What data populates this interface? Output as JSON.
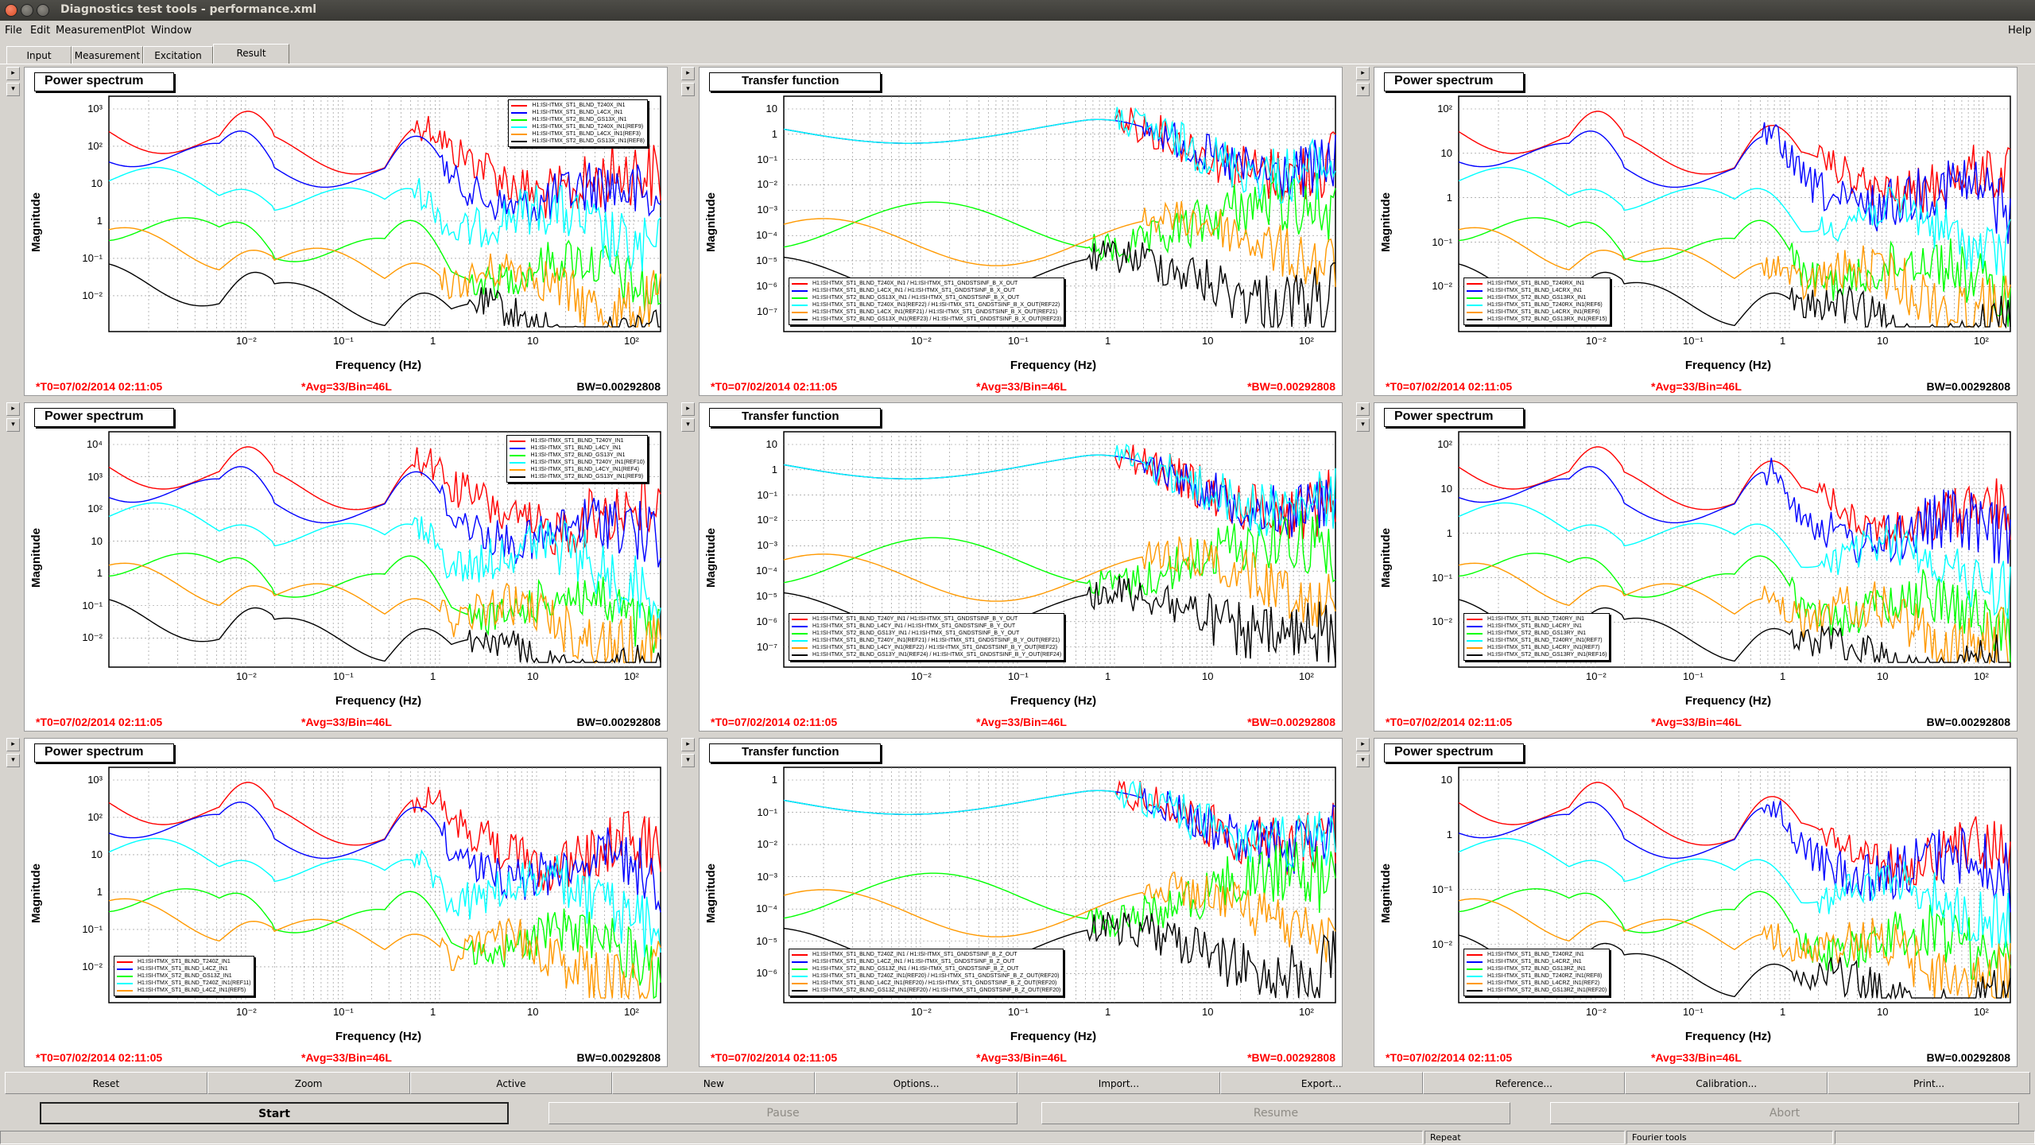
{
  "window": {
    "title": "Diagnostics test tools - performance.xml"
  },
  "menu": [
    {
      "label": "File"
    },
    {
      "label": "Edit"
    },
    {
      "label": "Measurement"
    },
    {
      "label": "Plot"
    },
    {
      "label": "Window"
    }
  ],
  "menu_help": "Help",
  "tabs": [
    {
      "label": "Input"
    },
    {
      "label": "Measurement"
    },
    {
      "label": "Excitation"
    },
    {
      "label": "Result",
      "selected": true
    }
  ],
  "colors": {
    "red": "#ff0000",
    "blue": "#0000ff",
    "green": "#00ff00",
    "orange": "#ff9900",
    "cyan": "#00ffff",
    "black": "#000000",
    "navy": "#000080"
  },
  "panels": [
    {
      "title": "Power spectrum",
      "kind": "ps",
      "yticks": [
        "10³",
        "10²",
        "10",
        "1",
        "10⁻¹",
        "10⁻²"
      ],
      "xticks": [
        "10⁻²",
        "10⁻¹",
        "1",
        "10",
        "10²"
      ],
      "ylabel": "Magnitude",
      "xlabel": "Frequency (Hz)",
      "t0": "*T0=07/02/2014 02:11:05",
      "avg": "*Avg=33/Bin=46L",
      "bw": "BW=0.00292808",
      "bw_red": false,
      "legend_pos": "top-right",
      "legend": [
        {
          "text": "H1:ISI-ITMX_ST1_BLND_T240X_IN1",
          "color": "red"
        },
        {
          "text": "H1:ISI-ITMX_ST1_BLND_L4CX_IN1",
          "color": "blue"
        },
        {
          "text": "H1:ISI-ITMX_ST2_BLND_GS13X_IN1",
          "color": "green"
        },
        {
          "text": "H1:ISI-ITMX_ST1_BLND_T240X_IN1(REF9)",
          "color": "cyan"
        },
        {
          "text": "H1:ISI-ITMX_ST1_BLND_L4CX_IN1(REF3)",
          "color": "orange"
        },
        {
          "text": "H1:ISI-ITMX_ST2_BLND_GS13X_IN1(REF8)",
          "color": "black"
        }
      ]
    },
    {
      "title": "Transfer function",
      "kind": "tf",
      "yticks": [
        "10",
        "1",
        "10⁻¹",
        "10⁻²",
        "10⁻³",
        "10⁻⁴",
        "10⁻⁵",
        "10⁻⁶",
        "10⁻⁷"
      ],
      "xticks": [
        "10⁻²",
        "10⁻¹",
        "1",
        "10",
        "10²"
      ],
      "ylabel": "Magnitude",
      "xlabel": "Frequency (Hz)",
      "t0": "*T0=07/02/2014 02:11:05",
      "avg": "*Avg=33/Bin=46L",
      "bw": "*BW=0.00292808",
      "bw_red": true,
      "legend_pos": "bottom-left",
      "legend": [
        {
          "text": "H1:ISI-ITMX_ST1_BLND_T240X_IN1 / H1:ISI-ITMX_ST1_GNDSTSINF_B_X_OUT",
          "color": "red"
        },
        {
          "text": "H1:ISI-ITMX_ST1_BLND_L4CX_IN1 / H1:ISI-ITMX_ST1_GNDSTSINF_B_X_OUT",
          "color": "blue"
        },
        {
          "text": "H1:ISI-ITMX_ST2_BLND_GS13X_IN1 / H1:ISI-ITMX_ST1_GNDSTSINF_B_X_OUT",
          "color": "green"
        },
        {
          "text": "H1:ISI-ITMX_ST1_BLND_T240X_IN1(REF22) / H1:ISI-ITMX_ST1_GNDSTSINF_B_X_OUT(REF22)",
          "color": "cyan"
        },
        {
          "text": "H1:ISI-ITMX_ST1_BLND_L4CX_IN1(REF21) / H1:ISI-ITMX_ST1_GNDSTSINF_B_X_OUT(REF21)",
          "color": "orange"
        },
        {
          "text": "H1:ISI-ITMX_ST2_BLND_GS13X_IN1(REF23) / H1:ISI-ITMX_ST1_GNDSTSINF_B_X_OUT(REF23)",
          "color": "black"
        }
      ]
    },
    {
      "title": "Power spectrum",
      "kind": "ps",
      "yticks": [
        "10²",
        "10",
        "1",
        "10⁻¹",
        "10⁻²"
      ],
      "xticks": [
        "10⁻²",
        "10⁻¹",
        "1",
        "10",
        "10²"
      ],
      "ylabel": "Magnitude",
      "xlabel": "Frequency (Hz)",
      "t0": "*T0=07/02/2014 02:11:05",
      "avg": "*Avg=33/Bin=46L",
      "bw": "BW=0.00292808",
      "bw_red": false,
      "legend_pos": "bottom-left",
      "legend": [
        {
          "text": "H1:ISI-ITMX_ST1_BLND_T240RX_IN1",
          "color": "red"
        },
        {
          "text": "H1:ISI-ITMX_ST1_BLND_L4CRX_IN1",
          "color": "blue"
        },
        {
          "text": "H1:ISI-ITMX_ST2_BLND_GS13RX_IN1",
          "color": "green"
        },
        {
          "text": "H1:ISI-ITMX_ST1_BLND_T240RX_IN1(REF6)",
          "color": "cyan"
        },
        {
          "text": "H1:ISI-ITMX_ST1_BLND_L4CRX_IN1(REF6)",
          "color": "orange"
        },
        {
          "text": "H1:ISI-ITMX_ST2_BLND_GS13RX_IN1(REF15)",
          "color": "black"
        }
      ]
    },
    {
      "title": "Power spectrum",
      "kind": "ps",
      "yticks": [
        "10⁴",
        "10³",
        "10²",
        "10",
        "1",
        "10⁻¹",
        "10⁻²"
      ],
      "xticks": [
        "10⁻²",
        "10⁻¹",
        "1",
        "10",
        "10²"
      ],
      "ylabel": "Magnitude",
      "xlabel": "Frequency (Hz)",
      "t0": "*T0=07/02/2014 02:11:05",
      "avg": "*Avg=33/Bin=46L",
      "bw": "BW=0.00292808",
      "bw_red": false,
      "legend_pos": "top-right",
      "legend": [
        {
          "text": "H1:ISI-ITMX_ST1_BLND_T240Y_IN1",
          "color": "red"
        },
        {
          "text": "H1:ISI-ITMX_ST1_BLND_L4CY_IN1",
          "color": "blue"
        },
        {
          "text": "H1:ISI-ITMX_ST2_BLND_GS13Y_IN1",
          "color": "green"
        },
        {
          "text": "H1:ISI-ITMX_ST1_BLND_T240Y_IN1(REF10)",
          "color": "cyan"
        },
        {
          "text": "H1:ISI-ITMX_ST1_BLND_L4CY_IN1(REF4)",
          "color": "orange"
        },
        {
          "text": "H1:ISI-ITMX_ST2_BLND_GS13Y_IN1(REF9)",
          "color": "black"
        }
      ]
    },
    {
      "title": "Transfer function",
      "kind": "tf",
      "yticks": [
        "10",
        "1",
        "10⁻¹",
        "10⁻²",
        "10⁻³",
        "10⁻⁴",
        "10⁻⁵",
        "10⁻⁶",
        "10⁻⁷"
      ],
      "xticks": [
        "10⁻²",
        "10⁻¹",
        "1",
        "10",
        "10²"
      ],
      "ylabel": "Magnitude",
      "xlabel": "Frequency (Hz)",
      "t0": "*T0=07/02/2014 02:11:05",
      "avg": "*Avg=33/Bin=46L",
      "bw": "*BW=0.00292808",
      "bw_red": true,
      "legend_pos": "bottom-left",
      "legend": [
        {
          "text": "H1:ISI-ITMX_ST1_BLND_T240Y_IN1 / H1:ISI-ITMX_ST1_GNDSTSINF_B_Y_OUT",
          "color": "red"
        },
        {
          "text": "H1:ISI-ITMX_ST1_BLND_L4CY_IN1 / H1:ISI-ITMX_ST1_GNDSTSINF_B_Y_OUT",
          "color": "blue"
        },
        {
          "text": "H1:ISI-ITMX_ST2_BLND_GS13Y_IN1 / H1:ISI-ITMX_ST1_GNDSTSINF_B_Y_OUT",
          "color": "green"
        },
        {
          "text": "H1:ISI-ITMX_ST1_BLND_T240Y_IN1(REF21) / H1:ISI-ITMX_ST1_GNDSTSINF_B_Y_OUT(REF21)",
          "color": "cyan"
        },
        {
          "text": "H1:ISI-ITMX_ST1_BLND_L4CY_IN1(REF22) / H1:ISI-ITMX_ST1_GNDSTSINF_B_Y_OUT(REF22)",
          "color": "orange"
        },
        {
          "text": "H1:ISI-ITMX_ST2_BLND_GS13Y_IN1(REF24) / H1:ISI-ITMX_ST1_GNDSTSINF_B_Y_OUT(REF24)",
          "color": "black"
        }
      ]
    },
    {
      "title": "Power spectrum",
      "kind": "ps",
      "yticks": [
        "10²",
        "10",
        "1",
        "10⁻¹",
        "10⁻²"
      ],
      "xticks": [
        "10⁻²",
        "10⁻¹",
        "1",
        "10",
        "10²"
      ],
      "ylabel": "Magnitude",
      "xlabel": "Frequency (Hz)",
      "t0": "*T0=07/02/2014 02:11:05",
      "avg": "*Avg=33/Bin=46L",
      "bw": "BW=0.00292808",
      "bw_red": false,
      "legend_pos": "bottom-left",
      "legend": [
        {
          "text": "H1:ISI-ITMX_ST1_BLND_T240RY_IN1",
          "color": "red"
        },
        {
          "text": "H1:ISI-ITMX_ST1_BLND_L4CRY_IN1",
          "color": "blue"
        },
        {
          "text": "H1:ISI-ITMX_ST2_BLND_GS13RY_IN1",
          "color": "green"
        },
        {
          "text": "H1:ISI-ITMX_ST1_BLND_T240RY_IN1(REF7)",
          "color": "cyan"
        },
        {
          "text": "H1:ISI-ITMX_ST1_BLND_L4CRY_IN1(REF7)",
          "color": "orange"
        },
        {
          "text": "H1:ISI-ITMX_ST2_BLND_GS13RY_IN1(REF16)",
          "color": "black"
        }
      ]
    },
    {
      "title": "Power spectrum",
      "kind": "ps",
      "yticks": [
        "10³",
        "10²",
        "10",
        "1",
        "10⁻¹",
        "10⁻²"
      ],
      "xticks": [
        "10⁻²",
        "10⁻¹",
        "1",
        "10",
        "10²"
      ],
      "ylabel": "Magnitude",
      "xlabel": "Frequency (Hz)",
      "t0": "*T0=07/02/2014 02:11:05",
      "avg": "*Avg=33/Bin=46L",
      "bw": "BW=0.00292808",
      "bw_red": false,
      "legend_pos": "bottom-left",
      "legend": [
        {
          "text": "H1:ISI-ITMX_ST1_BLND_T240Z_IN1",
          "color": "red"
        },
        {
          "text": "H1:ISI-ITMX_ST1_BLND_L4CZ_IN1",
          "color": "blue"
        },
        {
          "text": "H1:ISI-ITMX_ST2_BLND_GS13Z_IN1",
          "color": "green"
        },
        {
          "text": "H1:ISI-ITMX_ST1_BLND_T240Z_IN1(REF11)",
          "color": "cyan"
        },
        {
          "text": "H1:ISI-ITMX_ST1_BLND_L4CZ_IN1(REF5)",
          "color": "orange"
        }
      ]
    },
    {
      "title": "Transfer function",
      "kind": "tf",
      "yticks": [
        "1",
        "10⁻¹",
        "10⁻²",
        "10⁻³",
        "10⁻⁴",
        "10⁻⁵",
        "10⁻⁶"
      ],
      "xticks": [
        "10⁻²",
        "10⁻¹",
        "1",
        "10",
        "10²"
      ],
      "ylabel": "Magnitude",
      "xlabel": "Frequency (Hz)",
      "t0": "*T0=07/02/2014 02:11:05",
      "avg": "*Avg=33/Bin=46L",
      "bw": "*BW=0.00292808",
      "bw_red": true,
      "legend_pos": "bottom-left",
      "legend": [
        {
          "text": "H1:ISI-ITMX_ST1_BLND_T240Z_IN1 / H1:ISI-ITMX_ST1_GNDSTSINF_B_Z_OUT",
          "color": "red"
        },
        {
          "text": "H1:ISI-ITMX_ST1_BLND_L4CZ_IN1 / H1:ISI-ITMX_ST1_GNDSTSINF_B_Z_OUT",
          "color": "blue"
        },
        {
          "text": "H1:ISI-ITMX_ST2_BLND_GS13Z_IN1 / H1:ISI-ITMX_ST1_GNDSTSINF_B_Z_OUT",
          "color": "green"
        },
        {
          "text": "H1:ISI-ITMX_ST1_BLND_T240Z_IN1(REF20) / H1:ISI-ITMX_ST1_GNDSTSINF_B_Z_OUT(REF20)",
          "color": "cyan"
        },
        {
          "text": "H1:ISI-ITMX_ST1_BLND_L4CZ_IN1(REF20) / H1:ISI-ITMX_ST1_GNDSTSINF_B_Z_OUT(REF20)",
          "color": "orange"
        },
        {
          "text": "H1:ISI-ITMX_ST2_BLND_GS13Z_IN1(REF20) / H1:ISI-ITMX_ST1_GNDSTSINF_B_Z_OUT(REF20)",
          "color": "black"
        }
      ]
    },
    {
      "title": "Power spectrum",
      "kind": "ps",
      "yticks": [
        "10",
        "1",
        "10⁻¹",
        "10⁻²"
      ],
      "xticks": [
        "10⁻²",
        "10⁻¹",
        "1",
        "10",
        "10²"
      ],
      "ylabel": "Magnitude",
      "xlabel": "Frequency (Hz)",
      "t0": "*T0=07/02/2014 02:11:05",
      "avg": "*Avg=33/Bin=46L",
      "bw": "BW=0.00292808",
      "bw_red": false,
      "legend_pos": "bottom-left",
      "legend": [
        {
          "text": "H1:ISI-ITMX_ST1_BLND_T240RZ_IN1",
          "color": "red"
        },
        {
          "text": "H1:ISI-ITMX_ST1_BLND_L4CRZ_IN1",
          "color": "blue"
        },
        {
          "text": "H1:ISI-ITMX_ST2_BLND_GS13RZ_IN1",
          "color": "green"
        },
        {
          "text": "H1:ISI-ITMX_ST1_BLND_T240RZ_IN1(REF8)",
          "color": "cyan"
        },
        {
          "text": "H1:ISI-ITMX_ST1_BLND_L4CRZ_IN1(REF2)",
          "color": "orange"
        },
        {
          "text": "H1:ISI-ITMX_ST2_BLND_GS13RZ_IN1(REF20)",
          "color": "black"
        }
      ]
    }
  ],
  "toolbar": [
    {
      "label": "Reset"
    },
    {
      "label": "Zoom"
    },
    {
      "label": "Active"
    },
    {
      "label": "New"
    },
    {
      "label": "Options..."
    },
    {
      "label": "Import..."
    },
    {
      "label": "Export..."
    },
    {
      "label": "Reference..."
    },
    {
      "label": "Calibration..."
    },
    {
      "label": "Print..."
    }
  ],
  "actions": [
    {
      "label": "Start",
      "enabled": true
    },
    {
      "label": "Pause",
      "enabled": false
    },
    {
      "label": "Resume",
      "enabled": false
    },
    {
      "label": "Abort",
      "enabled": false
    }
  ],
  "status": {
    "left": "",
    "repeat": "Repeat",
    "fourier": "Fourier tools",
    "right": ""
  }
}
